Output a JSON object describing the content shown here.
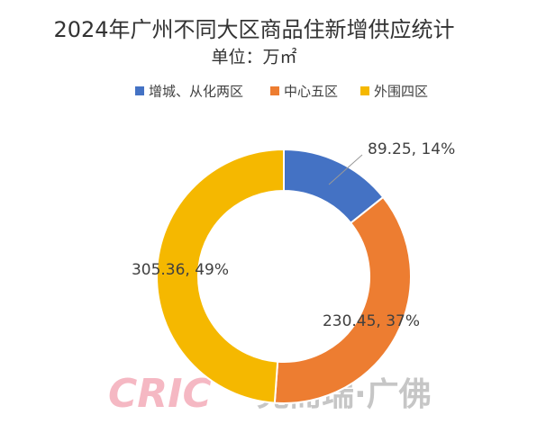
{
  "chart_data": {
    "type": "donut",
    "title": "2024年广州不同大区商品住新增供应统计",
    "subtitle": "单位：万㎡",
    "categories": [
      "增城、从化两区",
      "中心五区",
      "外围四区"
    ],
    "values": [
      89.25,
      230.45,
      305.36
    ],
    "value_labels": [
      "89.25, 14%",
      "230.45, 37%",
      "305.36, 49%"
    ],
    "colors": [
      "#4472c4",
      "#ed7d31",
      "#f5b800"
    ],
    "legend": "top"
  },
  "watermark": {
    "logo": "CRIC",
    "text": "克而瑞·广佛"
  }
}
